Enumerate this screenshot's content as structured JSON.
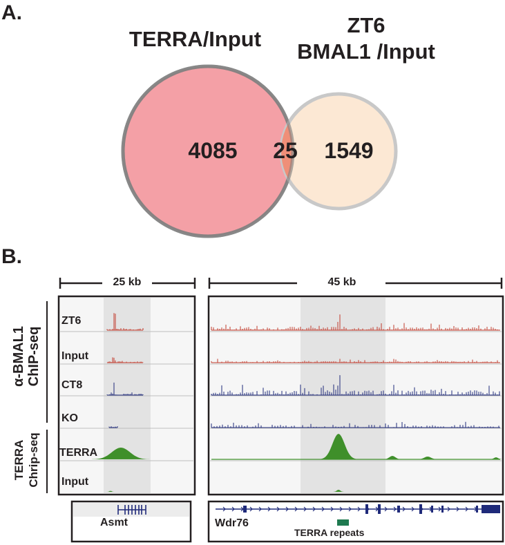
{
  "panel_a": {
    "label": "A.",
    "set_left": {
      "name": "TERRA/Input",
      "only_count": "4085",
      "color": "#f4a0a6"
    },
    "set_right": {
      "name_line1": "ZT6",
      "name_line2": "BMAL1 /Input",
      "only_count": "1549",
      "color": "#fce6cf"
    },
    "overlap": {
      "count": "25",
      "color": "#ef8f78"
    }
  },
  "panel_b": {
    "label": "B.",
    "left_view": {
      "scale": "25 kb",
      "gene": "Asmt"
    },
    "right_view": {
      "scale": "45 kb",
      "gene": "Wdr76",
      "feature": "TERRA repeats"
    },
    "group_chip": {
      "line1": "α-BMAL1",
      "line2": "ChIP-seq"
    },
    "group_chirp": {
      "line1": "TERRA",
      "line2": "Chrip-seq"
    },
    "tracks": [
      {
        "label": "ZT6",
        "color": "#c0392b"
      },
      {
        "label": "Input",
        "color": "#c0392b"
      },
      {
        "label": "CT8",
        "color": "#1f2a7a"
      },
      {
        "label": "KO",
        "color": "#1f2a7a"
      },
      {
        "label": "TERRA",
        "color": "#3f8f2a"
      },
      {
        "label": "Input",
        "color": "#3f8f2a"
      }
    ]
  }
}
